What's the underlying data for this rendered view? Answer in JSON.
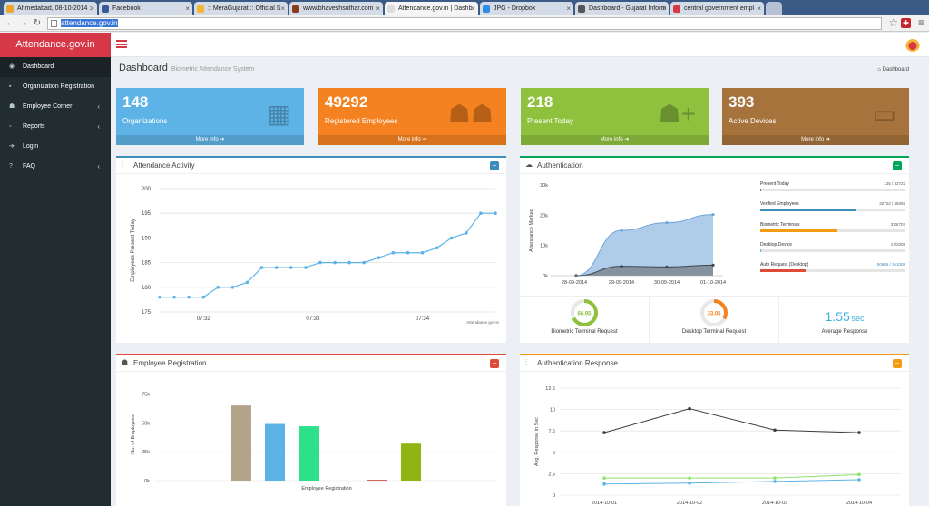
{
  "browser": {
    "tabs": [
      {
        "title": "Ahmedabad, 08-10-2014 :",
        "favicon_color": "#e8a830",
        "active": false
      },
      {
        "title": "Facebook",
        "favicon_color": "#3b5998",
        "active": false
      },
      {
        "title": ":: MeraGujarat :: Official S",
        "favicon_color": "#f2b632",
        "active": false
      },
      {
        "title": "www.bhaveshsuthar.com",
        "favicon_color": "#8b3a1a",
        "active": false
      },
      {
        "title": "Attendance.gov.in | Dashb",
        "favicon_color": "#dddddd",
        "active": true
      },
      {
        "title": "JPG - Dropbox",
        "favicon_color": "#2e8ce3",
        "active": false
      },
      {
        "title": "Dashboard - Gujarat Inform",
        "favicon_color": "#555555",
        "active": false
      },
      {
        "title": "central government empl",
        "favicon_color": "#d73848",
        "active": false
      }
    ],
    "url": "attendance.gov.in"
  },
  "sidebar": {
    "brand": "Attendance.gov.in",
    "items": [
      {
        "label": "Dashboard",
        "icon": "dashboard-icon",
        "glyph": "◉",
        "chevron": false,
        "active": true
      },
      {
        "label": "Organization Registration",
        "icon": "organization-icon",
        "glyph": "▪",
        "chevron": false,
        "active": false
      },
      {
        "label": "Employee Corner",
        "icon": "users-icon",
        "glyph": "☗",
        "chevron": true,
        "active": false
      },
      {
        "label": "Reports",
        "icon": "report-icon",
        "glyph": "▫",
        "chevron": true,
        "active": false
      },
      {
        "label": "Login",
        "icon": "login-icon",
        "glyph": "➜",
        "chevron": false,
        "active": false
      },
      {
        "label": "FAQ",
        "icon": "question-icon",
        "glyph": "?",
        "chevron": true,
        "active": false
      }
    ]
  },
  "page": {
    "title": "Dashboard",
    "subtitle": "Biometric Attendance System",
    "breadcrumb": "Dashboard"
  },
  "stat_boxes": [
    {
      "number": "148",
      "label": "Organizations",
      "more": "More info",
      "color": "#5eb3e6",
      "icon": "building-icon",
      "glyph": "▦"
    },
    {
      "number": "49292",
      "label": "Registered Employees",
      "more": "More info",
      "color": "#f58220",
      "icon": "users-icon",
      "glyph": "☗☗"
    },
    {
      "number": "218",
      "label": "Present Today",
      "more": "More info",
      "color": "#8fc13e",
      "icon": "add-user-icon",
      "glyph": "☗+"
    },
    {
      "number": "393",
      "label": "Active Devices",
      "more": "More info",
      "color": "#a7733d",
      "icon": "monitor-icon",
      "glyph": "▭"
    }
  ],
  "panels": {
    "attendance_activity": {
      "title": "Attendance Activity",
      "watermark": "Attendance.gov.in"
    },
    "authentication": {
      "title": "Authentication"
    },
    "employee_registration": {
      "title": "Employee Registration"
    },
    "authentication_response": {
      "title": "Authentication Response"
    }
  },
  "auth_stats": [
    {
      "label": "Present Today",
      "value": "125 / 32722",
      "fill": 0.004,
      "color": "#3c8dbc"
    },
    {
      "label": "Verified Employees",
      "value": "32722 / 49292",
      "fill": 0.66,
      "color": "#3c8dbc"
    },
    {
      "label": "Biometric Terminals",
      "value": "373/707",
      "fill": 0.53,
      "color": "#f39c12"
    },
    {
      "label": "Desktop Device",
      "value": "17/2009",
      "fill": 0.008,
      "color": "#5eb3e6"
    },
    {
      "label": "Auth Request (Desktop)",
      "value": "50695 / 161008",
      "value_highlight": "50695",
      "fill": 0.31,
      "color": "#dd4b39"
    }
  ],
  "gauges": [
    {
      "value": "66.95",
      "percent": 66.95,
      "label": "Biometric Terminal Request",
      "color": "#8fc13e"
    },
    {
      "value": "33.05",
      "percent": 33.05,
      "label": "Desktop Terminal Request",
      "color": "#f58220"
    }
  ],
  "avg_response": {
    "value": "1.55",
    "unit": "sec",
    "label": "Average Response"
  },
  "chart_data": [
    {
      "type": "line",
      "title": "Attendance Activity",
      "xlabel": "",
      "ylabel": "Employees Present Today",
      "ylim": [
        175,
        200
      ],
      "yticks": [
        175,
        180,
        185,
        190,
        195,
        200
      ],
      "xticks": [
        {
          "at": 3,
          "label": "07:32"
        },
        {
          "at": 10.5,
          "label": "07:33"
        },
        {
          "at": 18,
          "label": "07:34"
        }
      ],
      "grid": true,
      "values": [
        178,
        178,
        178,
        178,
        180,
        180,
        181,
        184,
        184,
        184,
        184,
        185,
        185,
        185,
        185,
        186,
        187,
        187,
        187,
        188,
        190,
        191,
        195,
        195
      ],
      "color": "#5eb3e6"
    },
    {
      "type": "area",
      "title": "Authentication",
      "ylabel": "Attendance Marked",
      "categories": [
        "28-09-2014",
        "29-09-2014",
        "30-09-2014",
        "01-10-2014"
      ],
      "yticks": [
        "0k",
        "10k",
        "20k",
        "30k"
      ],
      "ylim": [
        0,
        30000
      ],
      "series": [
        {
          "values": [
            0,
            15000,
            17500,
            20200
          ],
          "color": "#a6c8e8",
          "line": "#6fa5d6"
        },
        {
          "values": [
            0,
            3100,
            2900,
            3500
          ],
          "color": "#7f8b96",
          "line": "#3e4850"
        }
      ]
    },
    {
      "type": "bar",
      "title": "Employee Registration",
      "xlabel": "Employee Registration",
      "ylabel": "No. of Employees",
      "yticks": [
        "0k",
        "25k",
        "50k",
        "75k"
      ],
      "ylim": [
        0,
        80000
      ],
      "values": [
        65000,
        49000,
        47000,
        600,
        32000
      ],
      "colors": [
        "#b5a48c",
        "#5eb3e6",
        "#2de08a",
        "#c0392b",
        "#8fb513"
      ]
    },
    {
      "type": "line",
      "title": "Authentication Response",
      "ylabel": "Avg. Response in Sec",
      "ylim": [
        0,
        12.5
      ],
      "yticks": [
        0,
        2.5,
        5,
        7.5,
        10,
        12.5
      ],
      "categories": [
        "2014-10-01",
        "2014-10-02",
        "2014-10-03",
        "2014-10-04"
      ],
      "grid": true,
      "series": [
        {
          "values": [
            7.3,
            10.1,
            7.6,
            7.3
          ],
          "color": "#3a3f44"
        },
        {
          "values": [
            2.0,
            2.0,
            2.0,
            2.4
          ],
          "color": "#8de26b"
        },
        {
          "values": [
            1.3,
            1.4,
            1.6,
            1.8
          ],
          "color": "#5eb3e6"
        }
      ]
    }
  ]
}
